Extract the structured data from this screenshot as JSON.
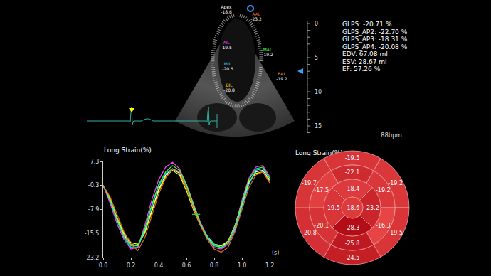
{
  "screen": {
    "echo_labels": [
      {
        "label": "Apex",
        "value": "-18.6",
        "color": "#ffffff"
      },
      {
        "label": "AAL",
        "value": "-23.2",
        "color": "#e06040"
      },
      {
        "label": "AIL",
        "value": "-19.5",
        "color": "#ff40ff"
      },
      {
        "label": "MIL",
        "value": "-20.5",
        "color": "#40c8ff"
      },
      {
        "label": "BIL",
        "value": "-20.8",
        "color": "#ffd700"
      },
      {
        "label": "MAL",
        "value": "-19.2",
        "color": "#40ff40"
      },
      {
        "label": "BAL",
        "value": "-19.2",
        "color": "#ff8c30"
      }
    ],
    "depth_ticks": [
      0,
      5,
      10,
      15
    ],
    "measurements": [
      "GLPS: -20.71 %",
      "GLPS_AP2: -22.70 %",
      "GLPS_AP3: -18.31 %",
      "GLPS_AP4: -20.08 %",
      "EDV: 67.08 ml",
      "ESV: 28.67 ml",
      "EF: 57.26 %"
    ],
    "heart_rate": "88bpm"
  },
  "chart_data": {
    "type": "line",
    "title": "Long Strain(%)",
    "xlabel": "(s)",
    "x": [
      0,
      0.05,
      0.1,
      0.15,
      0.2,
      0.25,
      0.3,
      0.35,
      0.4,
      0.45,
      0.5,
      0.55,
      0.6,
      0.65,
      0.7,
      0.75,
      0.8,
      0.85,
      0.9,
      0.95,
      1.0,
      1.05,
      1.1,
      1.15,
      1.2
    ],
    "series": [
      {
        "color": "#ffffff",
        "values": [
          -0.3,
          -5,
          -11,
          -16,
          -19,
          -19.5,
          -15,
          -8,
          -1.5,
          3,
          5,
          3.5,
          -1,
          -7,
          -12.5,
          -16.5,
          -19,
          -19.5,
          -18.5,
          -14,
          -6.5,
          0.5,
          4,
          4.5,
          1.5
        ]
      },
      {
        "color": "#ffff00",
        "values": [
          -0.3,
          -4.5,
          -10.5,
          -15.5,
          -18.5,
          -19,
          -15.5,
          -9,
          -2,
          2.5,
          4.5,
          3,
          -2,
          -8,
          -13,
          -17,
          -19,
          -19.5,
          -18,
          -13,
          -6,
          1,
          3.5,
          4,
          1
        ]
      },
      {
        "color": "#00e5ff",
        "values": [
          -0.3,
          -5.5,
          -11.5,
          -17,
          -20,
          -20,
          -14.5,
          -7,
          -0.5,
          3.5,
          5,
          4,
          -0.5,
          -6.5,
          -12,
          -16.5,
          -19,
          -20,
          -19,
          -14.5,
          -7,
          0,
          4.5,
          5,
          2
        ]
      },
      {
        "color": "#ff40ff",
        "values": [
          -0.3,
          -6,
          -12.5,
          -17.5,
          -20.5,
          -20,
          -13,
          -5,
          1.5,
          5.5,
          7,
          5,
          0,
          -6,
          -12,
          -17,
          -20,
          -20.5,
          -19,
          -13.5,
          -5,
          2,
          5.5,
          6,
          2.5
        ]
      },
      {
        "color": "#40ff40",
        "values": [
          -0.3,
          -5,
          -11,
          -16.5,
          -19.5,
          -19.5,
          -14,
          -6.5,
          0,
          4,
          6,
          4.5,
          0,
          -6.5,
          -12.5,
          -17,
          -19.5,
          -20,
          -18.5,
          -13,
          -5.5,
          1.5,
          5,
          5.5,
          2
        ]
      },
      {
        "color": "#e07020",
        "values": [
          -0.3,
          -4,
          -9.5,
          -15,
          -19,
          -21,
          -17,
          -10,
          -3,
          2,
          5,
          4,
          -1,
          -7.5,
          -13,
          -17.5,
          -20.5,
          -21.5,
          -20,
          -15,
          -8,
          -1,
          3,
          4,
          0.5
        ]
      }
    ],
    "markers": [
      {
        "x": 0.67,
        "y": -9.5,
        "color": "#33cc33",
        "marker": "cross"
      }
    ],
    "xlim": [
      0,
      1.2
    ],
    "xticks": [
      {
        "value": 0,
        "label": "0.0"
      },
      0.2,
      0.4,
      0.6,
      0.8,
      {
        "value": 1,
        "label": "1.0"
      },
      1.2
    ],
    "ylim": [
      -23.2,
      7.3
    ],
    "yticks": [
      7.3,
      -0.3,
      -7.9,
      -15.5,
      -23.2
    ],
    "grid": false
  },
  "bullseye": {
    "title": "Long Strain(%)",
    "apex": -18.6,
    "apical": [
      -18.4,
      -23.2,
      -28.3,
      -19.5
    ],
    "mid": [
      -22.1,
      -19.2,
      -16.3,
      -25.8,
      -20.1,
      -17.5
    ],
    "basal": [
      -19.5,
      -19.2,
      -19.5,
      -24.5,
      -20.8,
      -19.7
    ]
  }
}
